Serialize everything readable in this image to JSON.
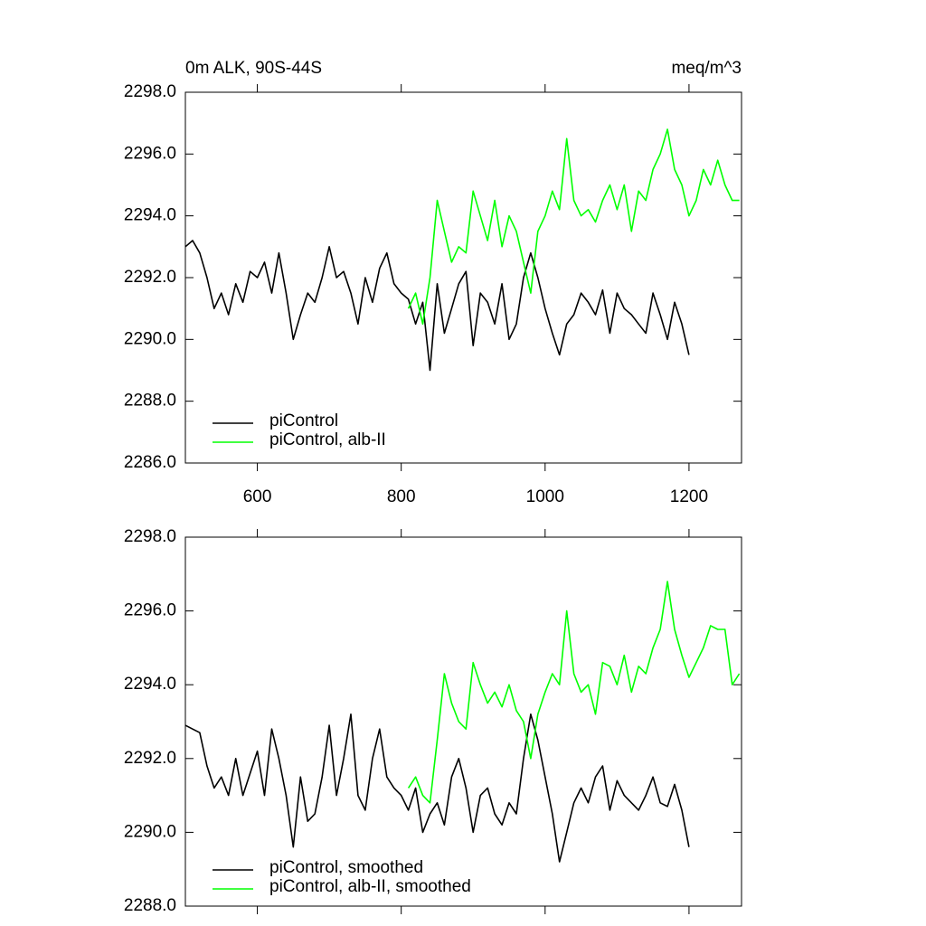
{
  "chart_data": [
    {
      "type": "line",
      "title": "0m ALK, 90S-44S",
      "units": "meq/m^3",
      "xlim": [
        500,
        1273
      ],
      "xticks": [
        600,
        800,
        1000,
        1200
      ],
      "ylim": [
        2286,
        2298
      ],
      "yticks": [
        {
          "value": 2286,
          "label": "2286.0"
        },
        {
          "value": 2288,
          "label": "2288.0"
        },
        {
          "value": 2290,
          "label": "2290.0"
        },
        {
          "value": 2292,
          "label": "2292.0"
        },
        {
          "value": 2294,
          "label": "2294.0"
        },
        {
          "value": 2296,
          "label": "2296.0"
        },
        {
          "value": 2298,
          "label": "2298.0"
        }
      ],
      "legend": "lower left",
      "series": [
        {
          "name": "piControl",
          "color": "#000000",
          "x": [
            500,
            510,
            520,
            530,
            540,
            550,
            560,
            570,
            580,
            590,
            600,
            610,
            620,
            630,
            640,
            650,
            660,
            670,
            680,
            690,
            700,
            710,
            720,
            730,
            740,
            750,
            760,
            770,
            780,
            790,
            800,
            810,
            820,
            830,
            840,
            850,
            860,
            870,
            880,
            890,
            900,
            910,
            920,
            930,
            940,
            950,
            960,
            970,
            980,
            990,
            1000,
            1010,
            1020,
            1030,
            1040,
            1050,
            1060,
            1070,
            1080,
            1090,
            1100,
            1110,
            1120,
            1130,
            1140,
            1150,
            1160,
            1170,
            1180,
            1190,
            1200
          ],
          "values": [
            2293.0,
            2293.2,
            2292.8,
            2292.0,
            2291.0,
            2291.5,
            2290.8,
            2291.8,
            2291.2,
            2292.2,
            2292.0,
            2292.5,
            2291.5,
            2292.8,
            2291.5,
            2290.0,
            2290.8,
            2291.5,
            2291.2,
            2292.0,
            2293.0,
            2292.0,
            2292.2,
            2291.5,
            2290.5,
            2292.0,
            2291.2,
            2292.3,
            2292.8,
            2291.8,
            2291.5,
            2291.3,
            2290.5,
            2291.2,
            2289.0,
            2291.8,
            2290.2,
            2291.0,
            2291.8,
            2292.2,
            2289.8,
            2291.5,
            2291.2,
            2290.5,
            2291.8,
            2290.0,
            2290.5,
            2292.0,
            2292.8,
            2292.0,
            2291.0,
            2290.2,
            2289.5,
            2290.5,
            2290.8,
            2291.5,
            2291.2,
            2290.8,
            2291.6,
            2290.2,
            2291.5,
            2291.0,
            2290.8,
            2290.5,
            2290.2,
            2291.5,
            2290.8,
            2290.0,
            2291.2,
            2290.5,
            2289.5
          ]
        },
        {
          "name": "piControl, alb-II",
          "color": "#00ff00",
          "x": [
            810,
            820,
            830,
            840,
            850,
            860,
            870,
            880,
            890,
            900,
            910,
            920,
            930,
            940,
            950,
            960,
            970,
            980,
            990,
            1000,
            1010,
            1020,
            1030,
            1040,
            1050,
            1060,
            1070,
            1080,
            1090,
            1100,
            1110,
            1120,
            1130,
            1140,
            1150,
            1160,
            1170,
            1180,
            1190,
            1200,
            1210,
            1220,
            1230,
            1240,
            1250,
            1260,
            1270
          ],
          "values": [
            2291.0,
            2291.5,
            2290.5,
            2292.0,
            2294.5,
            2293.5,
            2292.5,
            2293.0,
            2292.8,
            2294.8,
            2294.0,
            2293.2,
            2294.5,
            2293.0,
            2294.0,
            2293.5,
            2292.5,
            2291.5,
            2293.5,
            2294.0,
            2294.8,
            2294.2,
            2296.5,
            2294.5,
            2294.0,
            2294.2,
            2293.8,
            2294.5,
            2295.0,
            2294.2,
            2295.0,
            2293.5,
            2294.8,
            2294.5,
            2295.5,
            2296.0,
            2296.8,
            2295.5,
            2295.0,
            2294.0,
            2294.5,
            2295.5,
            2295.0,
            2295.8,
            2295.0,
            2294.5,
            2294.5
          ]
        }
      ]
    },
    {
      "type": "line",
      "xlim": [
        500,
        1273
      ],
      "ylim": [
        2288,
        2298
      ],
      "yticks": [
        {
          "value": 2288,
          "label": "2288.0"
        },
        {
          "value": 2290,
          "label": "2290.0"
        },
        {
          "value": 2292,
          "label": "2292.0"
        },
        {
          "value": 2294,
          "label": "2294.0"
        },
        {
          "value": 2296,
          "label": "2296.0"
        },
        {
          "value": 2298,
          "label": "2298.0"
        }
      ],
      "legend": "lower left",
      "series": [
        {
          "name": "piControl, smoothed",
          "color": "#000000",
          "x": [
            500,
            510,
            520,
            530,
            540,
            550,
            560,
            570,
            580,
            590,
            600,
            610,
            620,
            630,
            640,
            650,
            660,
            670,
            680,
            690,
            700,
            710,
            720,
            730,
            740,
            750,
            760,
            770,
            780,
            790,
            800,
            810,
            820,
            830,
            840,
            850,
            860,
            870,
            880,
            890,
            900,
            910,
            920,
            930,
            940,
            950,
            960,
            970,
            980,
            990,
            1000,
            1010,
            1020,
            1030,
            1040,
            1050,
            1060,
            1070,
            1080,
            1090,
            1100,
            1110,
            1120,
            1130,
            1140,
            1150,
            1160,
            1170,
            1180,
            1190,
            1200
          ],
          "values": [
            2292.9,
            2292.8,
            2292.7,
            2291.8,
            2291.2,
            2291.5,
            2291.0,
            2292.0,
            2291.0,
            2291.6,
            2292.2,
            2291.0,
            2292.8,
            2292.0,
            2291.0,
            2289.6,
            2291.5,
            2290.3,
            2290.5,
            2291.5,
            2292.9,
            2291.0,
            2292.0,
            2293.2,
            2291.0,
            2290.6,
            2292.0,
            2292.8,
            2291.5,
            2291.2,
            2291.0,
            2290.6,
            2291.2,
            2290.0,
            2290.5,
            2290.8,
            2290.2,
            2291.5,
            2292.0,
            2291.2,
            2290.0,
            2291.0,
            2291.2,
            2290.5,
            2290.2,
            2290.8,
            2290.5,
            2292.0,
            2293.2,
            2292.5,
            2291.5,
            2290.5,
            2289.2,
            2290.0,
            2290.8,
            2291.2,
            2290.8,
            2291.5,
            2291.8,
            2290.6,
            2291.4,
            2291.0,
            2290.8,
            2290.6,
            2291.0,
            2291.5,
            2290.8,
            2290.7,
            2291.3,
            2290.6,
            2289.6
          ]
        },
        {
          "name": "piControl, alb-II, smoothed",
          "color": "#00ff00",
          "x": [
            810,
            820,
            830,
            840,
            850,
            860,
            870,
            880,
            890,
            900,
            910,
            920,
            930,
            940,
            950,
            960,
            970,
            980,
            990,
            1000,
            1010,
            1020,
            1030,
            1040,
            1050,
            1060,
            1070,
            1080,
            1090,
            1100,
            1110,
            1120,
            1130,
            1140,
            1150,
            1160,
            1170,
            1180,
            1190,
            1200,
            1210,
            1220,
            1230,
            1240,
            1250,
            1260,
            1270
          ],
          "values": [
            2291.2,
            2291.5,
            2291.0,
            2290.8,
            2292.5,
            2294.3,
            2293.5,
            2293.0,
            2292.8,
            2294.6,
            2294.0,
            2293.5,
            2293.8,
            2293.4,
            2294.0,
            2293.3,
            2293.0,
            2292.0,
            2293.2,
            2293.8,
            2294.3,
            2294.0,
            2296.0,
            2294.3,
            2293.8,
            2294.0,
            2293.2,
            2294.6,
            2294.5,
            2294.0,
            2294.8,
            2293.8,
            2294.5,
            2294.3,
            2295.0,
            2295.5,
            2296.8,
            2295.5,
            2294.8,
            2294.2,
            2294.6,
            2295.0,
            2295.6,
            2295.5,
            2295.5,
            2294.0,
            2294.3
          ]
        }
      ]
    }
  ]
}
